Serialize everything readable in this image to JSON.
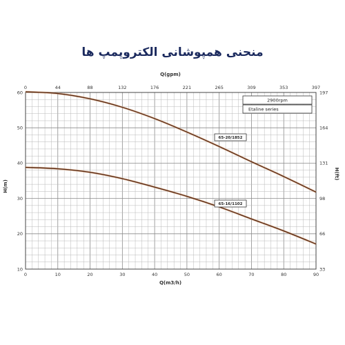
{
  "chart_data": {
    "type": "line",
    "title": "منحنی همپوشانی الکتروپمپ ها",
    "xlabel": "Q(m3/h)",
    "ylabel": "H(m)",
    "x2label": "Q(gpm)",
    "y2label": "H(ft)",
    "xlim": [
      0,
      90
    ],
    "ylim": [
      10,
      60
    ],
    "x_ticks": [
      "0",
      "10",
      "20",
      "30",
      "40",
      "50",
      "60",
      "70",
      "80",
      "90"
    ],
    "y_ticks": [
      "10",
      "20",
      "30",
      "40",
      "50",
      "60"
    ],
    "x2_ticks": [
      "0",
      "44",
      "88",
      "132",
      "176",
      "221",
      "265",
      "309",
      "353",
      "397"
    ],
    "y2_ticks": [
      "33",
      "66",
      "98",
      "131",
      "164",
      "197"
    ],
    "grid": true,
    "legend_box": {
      "speed": "2900rpm",
      "series_name": "Etaline series",
      "placement": "top-right"
    },
    "series": [
      {
        "name": "65-20/1852",
        "x": [
          0,
          10,
          20,
          30,
          40,
          50,
          60,
          70,
          80,
          90
        ],
        "y": [
          60.2,
          59.7,
          58.2,
          55.8,
          52.6,
          48.8,
          44.7,
          40.4,
          36.2,
          31.8
        ]
      },
      {
        "name": "65-16/1102",
        "x": [
          0,
          10,
          20,
          30,
          40,
          50,
          60,
          70,
          80,
          90
        ],
        "y": [
          38.8,
          38.4,
          37.4,
          35.6,
          33.2,
          30.6,
          27.6,
          24.2,
          20.8,
          17.1
        ]
      }
    ]
  }
}
